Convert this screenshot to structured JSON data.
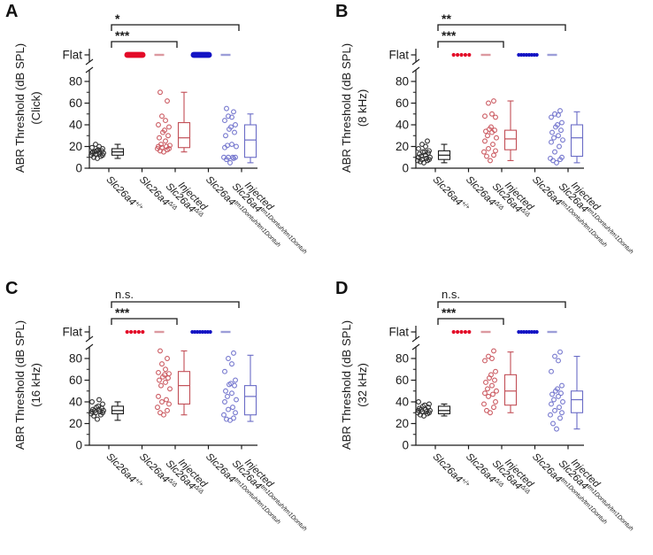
{
  "colors": {
    "axis": "#1a1a1a",
    "black_point": "#2e2e2e",
    "black_box": "#1a1a1a",
    "red_flat": "#e30b28",
    "red_point": "#cb5a61",
    "red_box": "#c24f57",
    "red_dash": "#dc99a0",
    "blue_flat": "#1414c4",
    "blue_point": "#7577ce",
    "blue_box": "#6a6cc6",
    "blue_dash": "#9c9ed8"
  },
  "chart_data": {
    "type": "scatter+box",
    "y_axis": {
      "label": "ABR Threshold (dB SPL)",
      "ticks": [
        0,
        20,
        40,
        60,
        80
      ],
      "minor_ticks": [
        10,
        30,
        50,
        70
      ],
      "flat_label": "Flat",
      "axis_break": "between 80 and Flat",
      "ylim": [
        0,
        80
      ]
    },
    "categories": [
      {
        "prefix": "",
        "gene": "Slc26a4",
        "sup": "+/+",
        "plain": "Slc26a4+/+"
      },
      {
        "prefix": "",
        "gene": "Slc26a4",
        "sup": "Δ/Δ",
        "plain": "Slc26a4Δ/Δ"
      },
      {
        "prefix": "Injected",
        "gene": "Slc26a4",
        "sup": "Δ/Δ",
        "plain": "Injected Slc26a4Δ/Δ"
      },
      {
        "prefix": "",
        "gene": "Slc26a4",
        "sup": "tm1Dontuh/tm1Dontuh",
        "plain": "Slc26a4tm1Dontuh/tm1Dontuh"
      },
      {
        "prefix": "Injected",
        "gene": "Slc26a4",
        "sup": "tm1Dontuh/tm1Dontuh",
        "plain": "Injected Slc26a4tm1Dontuh/tm1Dontuh"
      }
    ],
    "panels": [
      {
        "letter": "A",
        "stimulus_label": "(Click)",
        "significance": [
          {
            "label": "*",
            "between": [
              1,
              5
            ]
          },
          {
            "label": "***",
            "between": [
              1,
              3
            ]
          }
        ],
        "series": [
          {
            "category": 1,
            "color": "black",
            "points": [
              9,
              10,
              11,
              12,
              12,
              13,
              13,
              14,
              14,
              15,
              15,
              15,
              16,
              16,
              17,
              18,
              19,
              20,
              22
            ],
            "box": {
              "whisker_low": 9,
              "q1": 12,
              "median": 15,
              "q3": 18,
              "whisker_high": 22
            }
          },
          {
            "category": 2,
            "color": "red",
            "flat": true,
            "flat_marker": "bar"
          },
          {
            "category": 3,
            "color": "red",
            "points": [
              15,
              16,
              17,
              18,
              18,
              19,
              20,
              20,
              21,
              22,
              25,
              28,
              30,
              33,
              35,
              38,
              40,
              44,
              48,
              62,
              70
            ],
            "box": {
              "whisker_low": 15,
              "q1": 19,
              "median": 28,
              "q3": 42,
              "whisker_high": 70
            }
          },
          {
            "category": 4,
            "color": "blue",
            "flat": true,
            "flat_marker": "bar"
          },
          {
            "category": 5,
            "color": "blue",
            "points": [
              5,
              8,
              9,
              10,
              10,
              10,
              10,
              19,
              20,
              21,
              22,
              30,
              33,
              36,
              38,
              40,
              44,
              47,
              48,
              52,
              55
            ],
            "box": {
              "whisker_low": 5,
              "q1": 10,
              "median": 26,
              "q3": 40,
              "whisker_high": 50
            }
          }
        ]
      },
      {
        "letter": "B",
        "stimulus_label": "(8 kHz)",
        "significance": [
          {
            "label": "**",
            "between": [
              1,
              5
            ]
          },
          {
            "label": "***",
            "between": [
              1,
              3
            ]
          }
        ],
        "series": [
          {
            "category": 1,
            "color": "black",
            "points": [
              5,
              6,
              7,
              7,
              8,
              8,
              9,
              10,
              10,
              11,
              12,
              13,
              14,
              15,
              15,
              16,
              18,
              20,
              22,
              25
            ],
            "box": {
              "whisker_low": 5,
              "q1": 8,
              "median": 12,
              "q3": 16,
              "whisker_high": 22
            }
          },
          {
            "category": 2,
            "color": "red",
            "flat": true,
            "flat_marker": "dots",
            "flat_count": 5
          },
          {
            "category": 3,
            "color": "red",
            "points": [
              7,
              11,
              12,
              15,
              16,
              18,
              22,
              25,
              28,
              30,
              33,
              34,
              35,
              36,
              38,
              47,
              48,
              50,
              60,
              62
            ],
            "box": {
              "whisker_low": 7,
              "q1": 17,
              "median": 27,
              "q3": 35,
              "whisker_high": 62
            }
          },
          {
            "category": 4,
            "color": "blue",
            "flat": true,
            "flat_marker": "dots",
            "flat_count": 8
          },
          {
            "category": 5,
            "color": "blue",
            "points": [
              5,
              7,
              8,
              9,
              10,
              15,
              20,
              24,
              26,
              28,
              30,
              33,
              35,
              38,
              40,
              42,
              47,
              49,
              50,
              53
            ],
            "box": {
              "whisker_low": 5,
              "q1": 11,
              "median": 28,
              "q3": 40,
              "whisker_high": 52
            }
          }
        ]
      },
      {
        "letter": "C",
        "stimulus_label": "(16 kHz)",
        "significance": [
          {
            "label": "n.s.",
            "between": [
              1,
              5
            ]
          },
          {
            "label": "***",
            "between": [
              1,
              3
            ]
          }
        ],
        "series": [
          {
            "category": 1,
            "color": "black",
            "points": [
              24,
              27,
              28,
              29,
              30,
              30,
              31,
              31,
              32,
              32,
              33,
              33,
              34,
              35,
              36,
              38,
              40,
              42
            ],
            "box": {
              "whisker_low": 23,
              "q1": 29,
              "median": 32,
              "q3": 36,
              "whisker_high": 40
            }
          },
          {
            "category": 2,
            "color": "red",
            "flat": true,
            "flat_marker": "dots",
            "flat_count": 5
          },
          {
            "category": 3,
            "color": "red",
            "points": [
              28,
              30,
              32,
              35,
              38,
              40,
              42,
              45,
              52,
              55,
              58,
              60,
              62,
              63,
              65,
              66,
              67,
              70,
              75,
              80,
              87
            ],
            "box": {
              "whisker_low": 28,
              "q1": 38,
              "median": 55,
              "q3": 68,
              "whisker_high": 87
            }
          },
          {
            "category": 4,
            "color": "blue",
            "flat": true,
            "flat_marker": "dots",
            "flat_count": 8
          },
          {
            "category": 5,
            "color": "blue",
            "points": [
              23,
              24,
              25,
              28,
              30,
              33,
              35,
              40,
              42,
              45,
              48,
              50,
              55,
              56,
              57,
              60,
              68,
              75,
              80,
              85
            ],
            "box": {
              "whisker_low": 22,
              "q1": 28,
              "median": 45,
              "q3": 55,
              "whisker_high": 83
            }
          }
        ]
      },
      {
        "letter": "D",
        "stimulus_label": "(32 kHz)",
        "significance": [
          {
            "label": "n.s.",
            "between": [
              1,
              5
            ]
          },
          {
            "label": "***",
            "between": [
              1,
              3
            ]
          }
        ],
        "series": [
          {
            "category": 1,
            "color": "black",
            "points": [
              27,
              28,
              29,
              30,
              30,
              31,
              31,
              32,
              32,
              33,
              33,
              34,
              35,
              36,
              37,
              38,
              40
            ],
            "box": {
              "whisker_low": 27,
              "q1": 29,
              "median": 32,
              "q3": 36,
              "whisker_high": 38
            }
          },
          {
            "category": 2,
            "color": "red",
            "flat": true,
            "flat_marker": "dots",
            "flat_count": 5
          },
          {
            "category": 3,
            "color": "red",
            "points": [
              30,
              32,
              35,
              38,
              40,
              45,
              47,
              48,
              50,
              52,
              55,
              58,
              60,
              62,
              65,
              68,
              78,
              80,
              82,
              87
            ],
            "box": {
              "whisker_low": 30,
              "q1": 37,
              "median": 50,
              "q3": 65,
              "whisker_high": 86
            }
          },
          {
            "category": 4,
            "color": "blue",
            "flat": true,
            "flat_marker": "dots",
            "flat_count": 8
          },
          {
            "category": 5,
            "color": "blue",
            "points": [
              15,
              20,
              25,
              28,
              30,
              32,
              35,
              38,
              40,
              42,
              45,
              47,
              48,
              50,
              52,
              55,
              68,
              78,
              82,
              86
            ],
            "box": {
              "whisker_low": 15,
              "q1": 30,
              "median": 42,
              "q3": 50,
              "whisker_high": 82
            }
          }
        ]
      }
    ]
  }
}
